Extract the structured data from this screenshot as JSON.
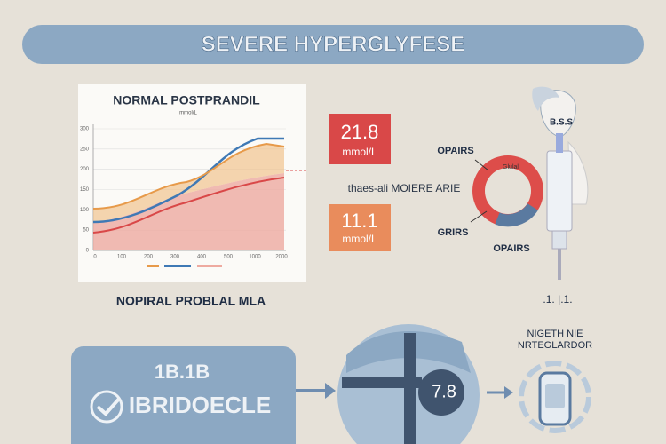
{
  "header": {
    "title": "SEVERE HYPERGLYFESE"
  },
  "chart_panel": {
    "title": "NORMAL POSTPRANDIL",
    "subtitle": "mmol/L",
    "y_labels": [
      "300",
      "250",
      "200",
      "150",
      "100",
      "50",
      "0"
    ],
    "x_labels": [
      "0",
      "100",
      "200",
      "300",
      "400",
      "500",
      "1000",
      "2000"
    ]
  },
  "readings": [
    {
      "value": "21.8",
      "unit": "mmol/L"
    },
    {
      "value": "11.1",
      "unit": "mmol/L"
    }
  ],
  "middle_caption": "thaes-ali MOIERE ARIE",
  "donut": {
    "labels": [
      "OPAIRS",
      "GRIRS",
      "OPAIRS"
    ],
    "center": "Glulal"
  },
  "figure": {
    "label": "B.S.S",
    "footnote": ".1. |.1."
  },
  "caption": "NOPIRAL PROBLAL MLA",
  "bottom": {
    "card_top": "1B.1B",
    "card_text": "IBRIDOECLE",
    "center_value": "7.8",
    "right_title": [
      "NIGETH NIE",
      "NRTEGLARDOR"
    ]
  }
}
